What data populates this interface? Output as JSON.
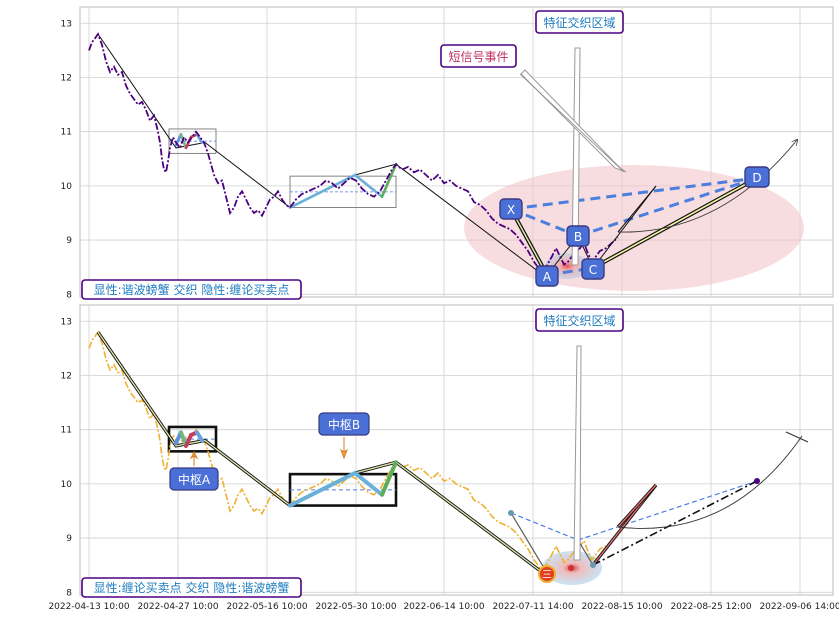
{
  "chart_data": {
    "type": "line",
    "x_ticks": [
      "2022-04-13 10:00",
      "2022-04-27 10:00",
      "2022-05-16 10:00",
      "2022-05-30 10:00",
      "2022-06-14 10:00",
      "2022-07-11 14:00",
      "2022-08-15 10:00",
      "2022-08-25 12:00",
      "2022-09-06 14:00"
    ],
    "y_ticks": [
      8,
      9,
      10,
      11,
      12,
      13
    ],
    "ylim": [
      7.95,
      13.3
    ],
    "xlim": [
      0,
      830
    ],
    "colors": {
      "price_top": "#4b0082",
      "price_bottom": "#f0b030",
      "zigzag": "#111111",
      "box_border": "#333333",
      "ellipse": "#f3c1c6",
      "pattern_dash": "#4a7fe0",
      "label_text_top": "#1f7cc0",
      "label_text_purple": "#c03060",
      "label_border": "#4b0082"
    },
    "price": [
      [
        89,
        12.5
      ],
      [
        92,
        12.65
      ],
      [
        95,
        12.72
      ],
      [
        98,
        12.8
      ],
      [
        102,
        12.6
      ],
      [
        106,
        12.3
      ],
      [
        110,
        12.1
      ],
      [
        114,
        12.2
      ],
      [
        118,
        12.05
      ],
      [
        122,
        12.1
      ],
      [
        126,
        11.85
      ],
      [
        130,
        11.7
      ],
      [
        134,
        11.6
      ],
      [
        138,
        11.5
      ],
      [
        142,
        11.55
      ],
      [
        146,
        11.4
      ],
      [
        150,
        11.2
      ],
      [
        154,
        11.3
      ],
      [
        158,
        11.0
      ],
      [
        160,
        10.8
      ],
      [
        162,
        10.5
      ],
      [
        164,
        10.3
      ],
      [
        166,
        10.25
      ],
      [
        168,
        10.45
      ],
      [
        170,
        10.7
      ],
      [
        173,
        10.9
      ],
      [
        176,
        10.8
      ],
      [
        180,
        10.7
      ],
      [
        184,
        10.9
      ],
      [
        188,
        10.8
      ],
      [
        192,
        10.9
      ],
      [
        196,
        11.0
      ],
      [
        200,
        10.9
      ],
      [
        204,
        10.8
      ],
      [
        208,
        10.6
      ],
      [
        211,
        10.4
      ],
      [
        214,
        10.2
      ],
      [
        218,
        10.05
      ],
      [
        222,
        10.1
      ],
      [
        226,
        9.8
      ],
      [
        230,
        9.5
      ],
      [
        234,
        9.6
      ],
      [
        238,
        9.8
      ],
      [
        242,
        9.9
      ],
      [
        246,
        9.75
      ],
      [
        250,
        9.6
      ],
      [
        254,
        9.5
      ],
      [
        258,
        9.55
      ],
      [
        262,
        9.45
      ],
      [
        266,
        9.6
      ],
      [
        270,
        9.75
      ],
      [
        274,
        9.8
      ],
      [
        278,
        9.9
      ],
      [
        282,
        9.75
      ],
      [
        286,
        9.65
      ],
      [
        290,
        9.6
      ],
      [
        296,
        9.75
      ],
      [
        302,
        9.85
      ],
      [
        308,
        9.9
      ],
      [
        314,
        9.95
      ],
      [
        320,
        10.0
      ],
      [
        326,
        10.1
      ],
      [
        332,
        10.05
      ],
      [
        338,
        9.95
      ],
      [
        344,
        10.05
      ],
      [
        350,
        10.15
      ],
      [
        356,
        10.1
      ],
      [
        362,
        9.95
      ],
      [
        368,
        9.85
      ],
      [
        374,
        9.8
      ],
      [
        380,
        9.9
      ],
      [
        386,
        10.1
      ],
      [
        392,
        10.3
      ],
      [
        396,
        10.4
      ],
      [
        402,
        10.3
      ],
      [
        408,
        10.35
      ],
      [
        414,
        10.25
      ],
      [
        420,
        10.3
      ],
      [
        426,
        10.2
      ],
      [
        432,
        10.1
      ],
      [
        438,
        10.2
      ],
      [
        444,
        10.05
      ],
      [
        450,
        10.1
      ],
      [
        456,
        10.0
      ],
      [
        462,
        9.95
      ],
      [
        468,
        9.9
      ],
      [
        474,
        9.7
      ],
      [
        480,
        9.65
      ],
      [
        486,
        9.55
      ],
      [
        492,
        9.4
      ],
      [
        498,
        9.3
      ],
      [
        504,
        9.25
      ],
      [
        510,
        9.2
      ],
      [
        516,
        9.1
      ],
      [
        522,
        8.95
      ],
      [
        528,
        8.8
      ],
      [
        534,
        8.6
      ],
      [
        540,
        8.45
      ],
      [
        546,
        8.5
      ],
      [
        552,
        8.7
      ],
      [
        556,
        8.85
      ],
      [
        560,
        8.7
      ],
      [
        564,
        8.55
      ],
      [
        568,
        8.6
      ],
      [
        572,
        8.7
      ],
      [
        576,
        8.8
      ],
      [
        580,
        8.85
      ],
      [
        584,
        8.95
      ],
      [
        588,
        8.75
      ],
      [
        592,
        8.6
      ],
      [
        596,
        8.7
      ],
      [
        600,
        8.8
      ],
      [
        606,
        8.85
      ],
      [
        612,
        8.95
      ],
      [
        618,
        9.05
      ]
    ],
    "zigzag": [
      [
        98,
        12.8
      ],
      [
        176,
        10.7
      ],
      [
        205,
        10.8
      ],
      [
        290,
        9.6
      ],
      [
        355,
        10.2
      ],
      [
        396,
        10.4
      ],
      [
        547,
        8.3
      ],
      [
        578,
        8.95
      ],
      [
        593,
        8.5
      ],
      [
        656,
        10.0
      ]
    ],
    "boxes": [
      {
        "x0": 169,
        "x1": 216,
        "y0": 10.6,
        "y1": 11.05
      },
      {
        "x0": 290,
        "x1": 396,
        "y0": 9.6,
        "y1": 10.18
      }
    ],
    "bi_segments": [
      {
        "x0": 176,
        "y0": 10.75,
        "x1": 181,
        "y1": 10.95,
        "color": "#5f8fe0"
      },
      {
        "x0": 181,
        "y0": 10.95,
        "x1": 186,
        "y1": 10.7,
        "color": "#70b880"
      },
      {
        "x0": 186,
        "y0": 10.7,
        "x1": 191,
        "y1": 10.9,
        "color": "#c04060"
      },
      {
        "x0": 191,
        "y0": 10.9,
        "x1": 197,
        "y1": 10.95,
        "color": "#c04060"
      },
      {
        "x0": 197,
        "y0": 10.95,
        "x1": 202,
        "y1": 10.8,
        "color": "#6aa0e0"
      },
      {
        "x0": 290,
        "y0": 9.6,
        "x1": 355,
        "y1": 10.2,
        "color": "#6ab0d8"
      },
      {
        "x0": 355,
        "y0": 10.2,
        "x1": 382,
        "y1": 9.8,
        "color": "#6ab0d8"
      },
      {
        "x0": 382,
        "y0": 9.8,
        "x1": 396,
        "y1": 10.4,
        "color": "#5cad5c"
      }
    ],
    "xabcd": {
      "X": [
        511,
        9.5
      ],
      "A": [
        547,
        8.3
      ],
      "B": [
        578,
        8.95
      ],
      "C": [
        593,
        8.5
      ],
      "D": [
        757,
        10.1
      ]
    },
    "top_labels": {
      "main": "显性:谐波螃蟹 交织 隐性:缠论买卖点",
      "region": "特征交织区域",
      "short_signal": "短信号事件",
      "point_X": "X",
      "point_A": "A",
      "point_B": "B",
      "point_C": "C",
      "point_D": "D"
    },
    "bottom_labels": {
      "main": "显性:缠论买卖点 交织 隐性:谐波螃蟹",
      "region": "特征交织区域",
      "center_a": "中枢A",
      "center_b": "中枢B",
      "buy_point": "三"
    }
  }
}
